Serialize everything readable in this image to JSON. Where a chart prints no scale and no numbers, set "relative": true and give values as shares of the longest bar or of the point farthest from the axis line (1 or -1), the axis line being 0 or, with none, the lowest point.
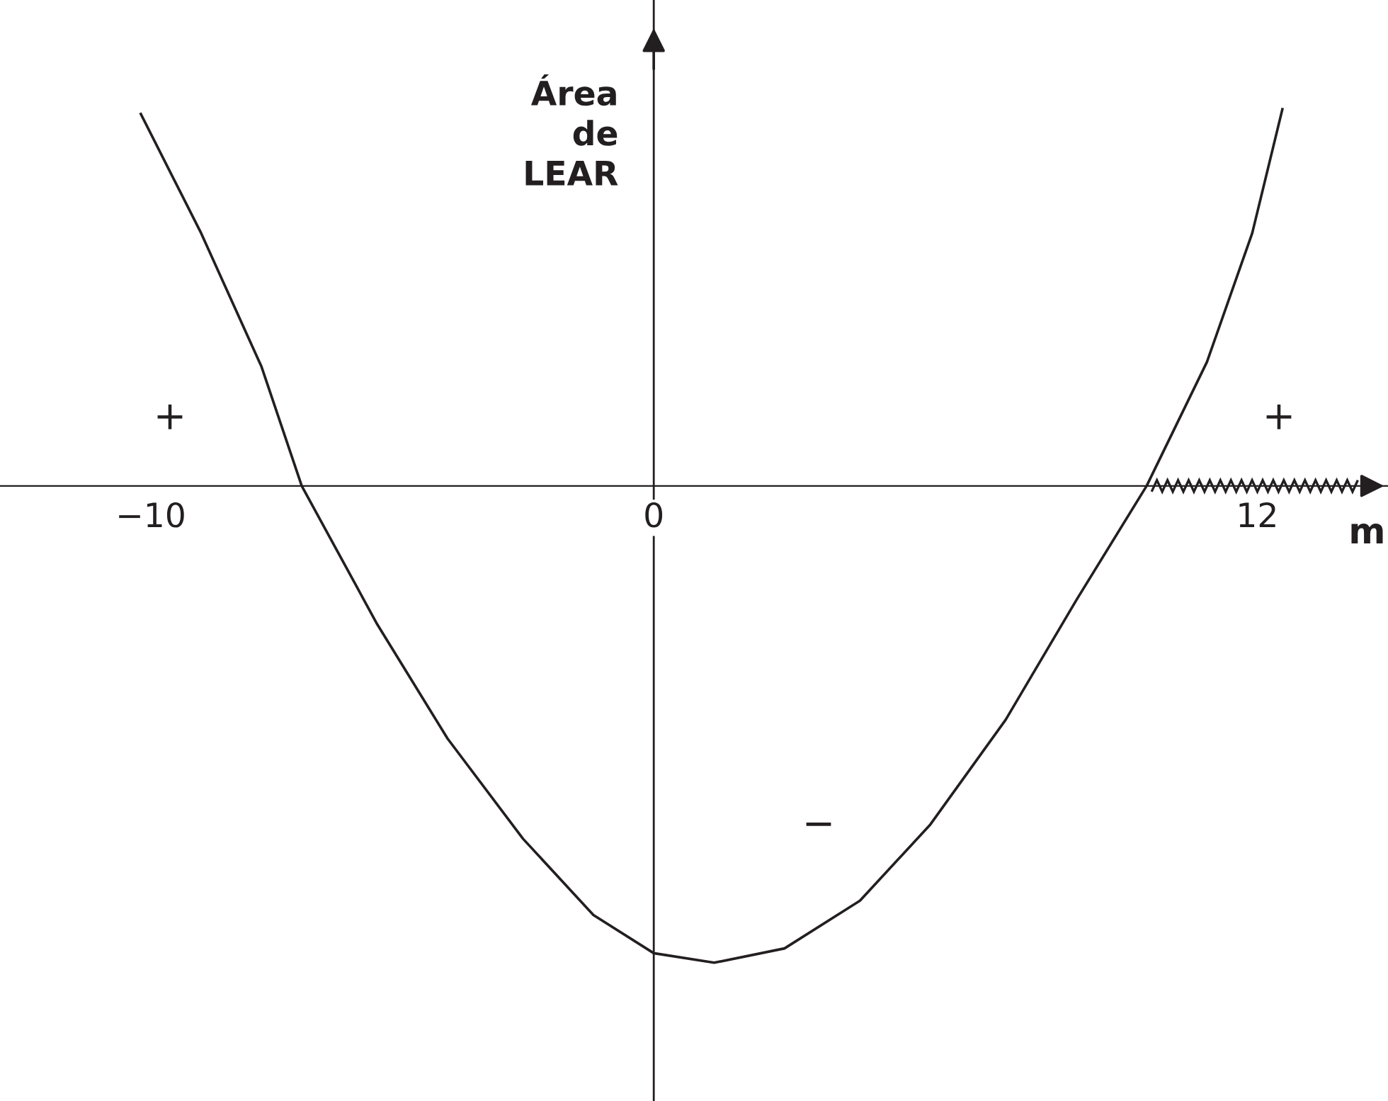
{
  "chart_data": {
    "type": "line",
    "relative": true,
    "xlabel": "m",
    "ylabel": "Área de LEAR",
    "x": [
      -10.2,
      -9.0,
      -7.8,
      -7.0,
      -5.5,
      -4.1,
      -2.6,
      -1.2,
      0.0,
      1.2,
      2.6,
      4.1,
      5.5,
      7.0,
      8.4,
      9.8,
      11.0,
      11.9,
      12.5
    ],
    "values": [
      0.78,
      0.53,
      0.25,
      0,
      -0.29,
      -0.53,
      -0.74,
      -0.9,
      -0.98,
      -1,
      -0.97,
      -0.87,
      -0.71,
      -0.49,
      -0.24,
      0,
      0.26,
      0.53,
      0.79
    ],
    "color": "#231f20",
    "xlim": [
      -13,
      14.6
    ],
    "xticks": [
      {
        "value": -10,
        "label": "−10"
      },
      0,
      12
    ],
    "grid": false,
    "ref_lines": [
      {
        "axis": "x",
        "value": 0,
        "color": "#231f20",
        "line_style": "solid"
      }
    ],
    "marker": "none",
    "line_style": "solid",
    "annotations": [
      "+",
      "+",
      "−"
    ]
  }
}
